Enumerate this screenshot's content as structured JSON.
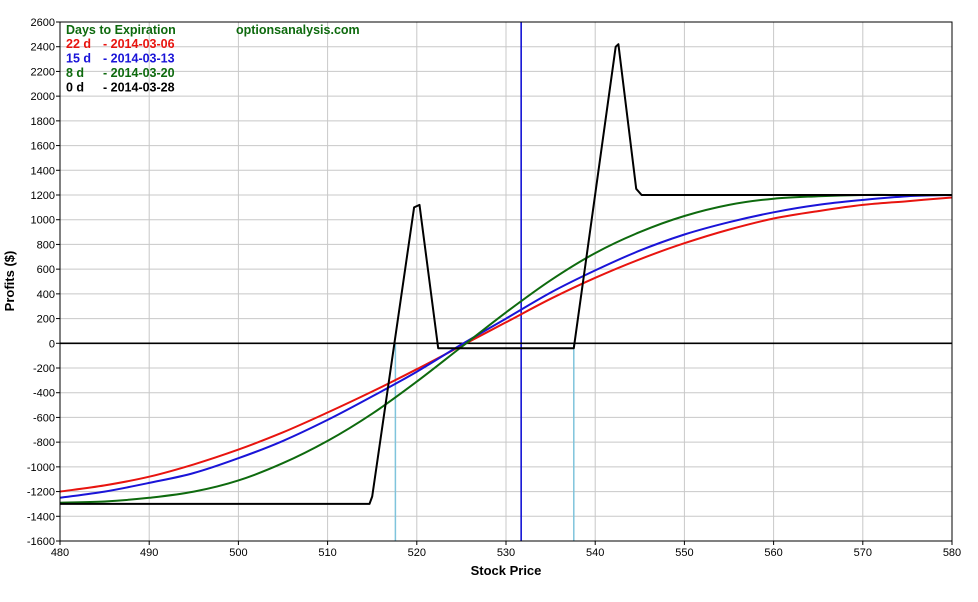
{
  "chart_data": {
    "type": "line",
    "xlabel": "Stock Price",
    "ylabel": "Profits ($)",
    "xlim": [
      480,
      580
    ],
    "ylim": [
      -1600,
      2600
    ],
    "x_ticks": [
      480,
      490,
      500,
      510,
      520,
      530,
      540,
      550,
      560,
      570,
      580
    ],
    "y_ticks": [
      -1600,
      -1400,
      -1200,
      -1000,
      -800,
      -600,
      -400,
      -200,
      0,
      200,
      400,
      600,
      800,
      1000,
      1200,
      1400,
      1600,
      1800,
      2000,
      2200,
      2400,
      2600
    ],
    "grid": true,
    "legend_title": "Days to Expiration",
    "watermark": "optionsanalysis.com",
    "legend_placement": "top-left",
    "series": [
      {
        "name_days": "22 d",
        "name_date": "- 2014-03-06",
        "color": "#e8140f",
        "x": [
          480,
          485,
          490,
          495,
          500,
          505,
          510,
          515,
          520,
          525,
          530,
          535,
          540,
          545,
          550,
          555,
          560,
          565,
          570,
          575,
          580
        ],
        "y": [
          -1200,
          -1150,
          -1080,
          -980,
          -860,
          -720,
          -560,
          -390,
          -210,
          -20,
          170,
          360,
          530,
          680,
          810,
          920,
          1010,
          1070,
          1120,
          1150,
          1180
        ]
      },
      {
        "name_days": "15 d",
        "name_date": "- 2014-03-13",
        "color": "#1a14d8",
        "x": [
          480,
          485,
          490,
          495,
          500,
          505,
          510,
          515,
          520,
          525,
          530,
          535,
          540,
          545,
          550,
          555,
          560,
          565,
          570,
          575,
          580
        ],
        "y": [
          -1250,
          -1200,
          -1130,
          -1050,
          -930,
          -790,
          -620,
          -430,
          -230,
          -10,
          200,
          410,
          590,
          750,
          880,
          980,
          1060,
          1120,
          1160,
          1190,
          1200
        ]
      },
      {
        "name_days": "8 d",
        "name_date": "- 2014-03-20",
        "color": "#0e6a0e",
        "x": [
          480,
          485,
          490,
          495,
          500,
          505,
          510,
          515,
          520,
          525,
          530,
          535,
          540,
          545,
          550,
          555,
          560,
          565,
          570,
          575,
          580
        ],
        "y": [
          -1290,
          -1280,
          -1250,
          -1200,
          -1110,
          -970,
          -790,
          -570,
          -310,
          -30,
          250,
          510,
          730,
          900,
          1030,
          1120,
          1170,
          1190,
          1200,
          1200,
          1200
        ]
      },
      {
        "name_days": "0 d",
        "name_date": "- 2014-03-28",
        "color": "#000000",
        "x": [
          480,
          514.7,
          515,
          519.7,
          520.3,
          522.4,
          537.6,
          542.3,
          542.6,
          544.6,
          545.2,
          580
        ],
        "y": [
          -1300,
          -1300,
          -1240,
          1100,
          1120,
          -40,
          -40,
          2400,
          2420,
          1250,
          1200,
          1200
        ]
      }
    ],
    "reference_lines": {
      "current_price": 531.7,
      "current_price_color": "#1414d4",
      "breakevens": [
        517.6,
        537.6
      ],
      "breakeven_color": "#7fc4dc",
      "zero_line_color": "#000000"
    }
  }
}
